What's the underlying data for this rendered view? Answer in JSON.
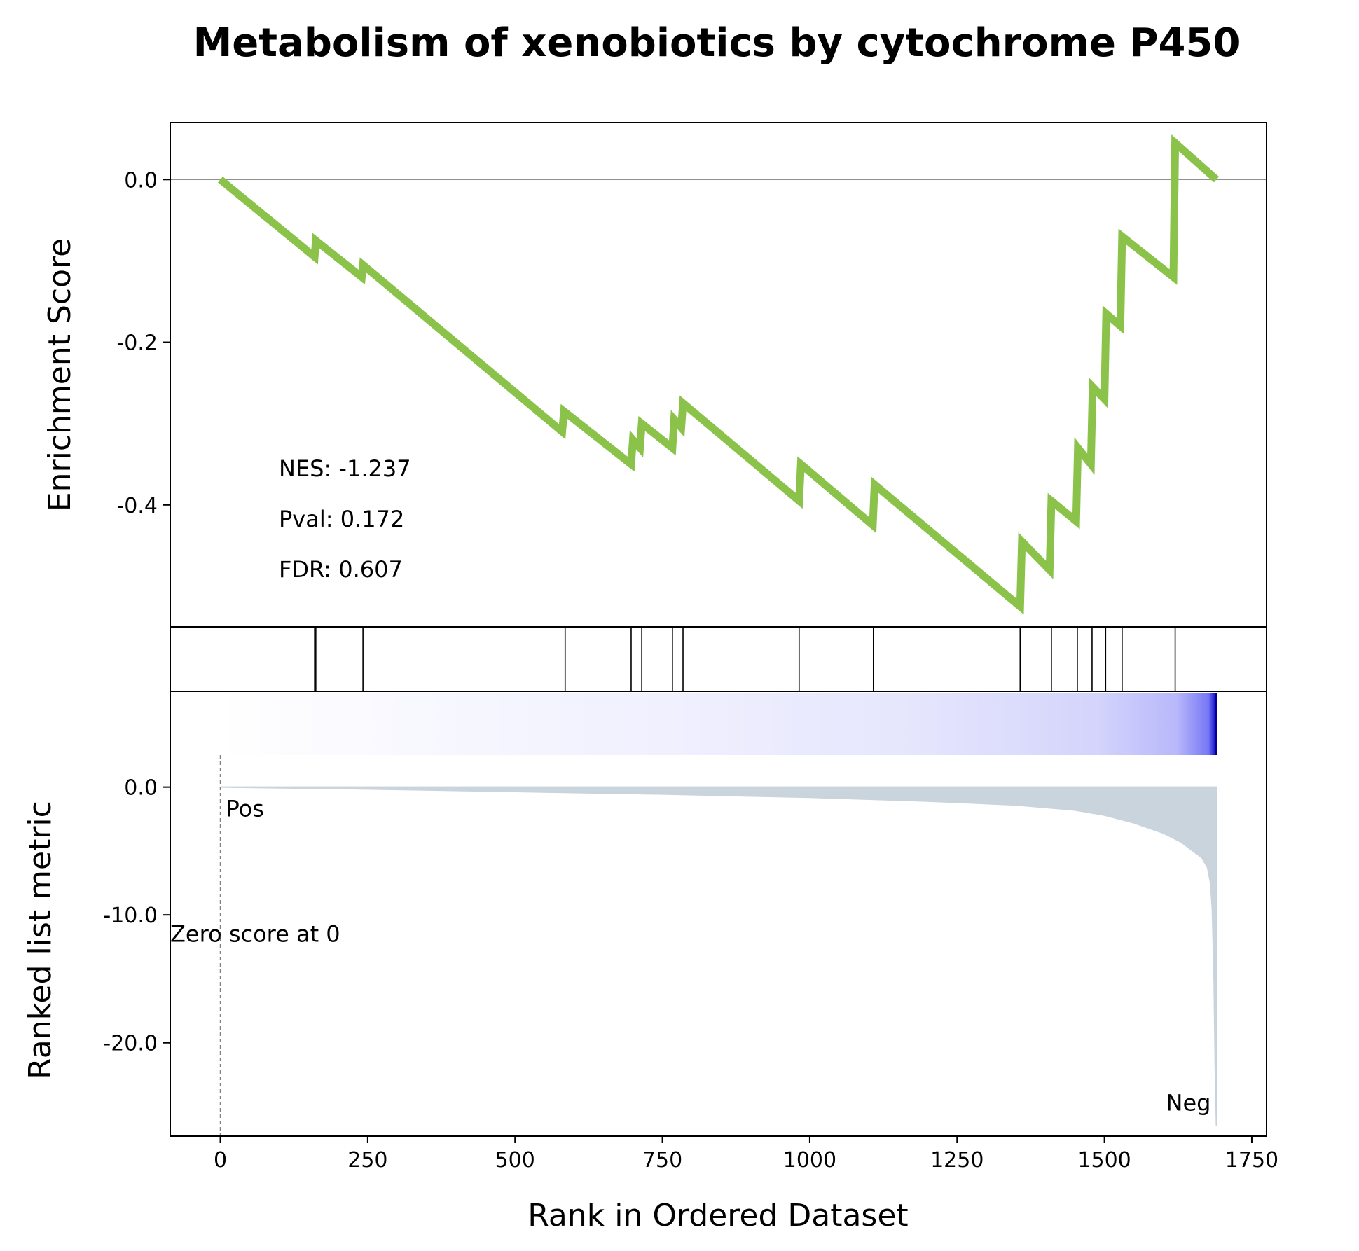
{
  "chart_data": {
    "type": "line",
    "title": "Metabolism of xenobiotics by cytochrome P450",
    "xlabel": "Rank in Ordered Dataset",
    "xlim": [
      -85,
      1775
    ],
    "x_ticks": [
      0,
      250,
      500,
      750,
      1000,
      1250,
      1500,
      1750
    ],
    "x_tick_labels": [
      "0",
      "250",
      "500",
      "750",
      "1000",
      "1250",
      "1500",
      "1750"
    ],
    "enrichment": {
      "ylabel": "Enrichment Score",
      "ylim": [
        -0.55,
        0.07
      ],
      "y_ticks": [
        0.0,
        -0.2,
        -0.4
      ],
      "y_tick_labels": [
        "0.0",
        "-0.2",
        "-0.4"
      ],
      "color": "#8bc34a",
      "x": [
        0,
        160,
        162,
        240,
        242,
        580,
        583,
        697,
        700,
        712,
        715,
        767,
        770,
        782,
        785,
        982,
        985,
        1107,
        1110,
        1357,
        1360,
        1407,
        1410,
        1452,
        1455,
        1477,
        1480,
        1500,
        1503,
        1527,
        1530,
        1617,
        1620,
        1690
      ],
      "y": [
        0.0,
        -0.095,
        -0.075,
        -0.12,
        -0.105,
        -0.31,
        -0.285,
        -0.35,
        -0.32,
        -0.33,
        -0.3,
        -0.33,
        -0.295,
        -0.305,
        -0.275,
        -0.395,
        -0.35,
        -0.425,
        -0.375,
        -0.525,
        -0.445,
        -0.48,
        -0.395,
        -0.42,
        -0.33,
        -0.35,
        -0.255,
        -0.27,
        -0.165,
        -0.18,
        -0.07,
        -0.12,
        0.045,
        0.0
      ],
      "zero_line": 0.0,
      "annotations": [
        "NES: -1.237",
        "Pval: 0.172",
        "FDR: 0.607"
      ]
    },
    "hits": {
      "x": [
        160,
        162,
        242,
        585,
        697,
        715,
        767,
        785,
        982,
        1108,
        1357,
        1410,
        1454,
        1479,
        1502,
        1530,
        1620
      ]
    },
    "ranked_metric": {
      "ylabel": "Ranked list metric",
      "ylim": [
        -27.3,
        2.5
      ],
      "y_ticks": [
        0.0,
        -10.0,
        -20.0
      ],
      "y_tick_labels": [
        "0.0",
        "-10.0",
        "-20.0"
      ],
      "fill_color": "#c9d4dc",
      "x": [
        0,
        250,
        500,
        750,
        1000,
        1200,
        1350,
        1450,
        1500,
        1550,
        1600,
        1630,
        1650,
        1665,
        1675,
        1680,
        1683,
        1686,
        1688,
        1690
      ],
      "y": [
        0.0,
        -0.15,
        -0.35,
        -0.55,
        -0.8,
        -1.1,
        -1.4,
        -1.8,
        -2.2,
        -2.8,
        -3.6,
        -4.3,
        -5.0,
        -5.5,
        -6.3,
        -7.5,
        -9.5,
        -15.0,
        -22.0,
        -26.5
      ],
      "zero_score_label": "Zero score at 0",
      "zero_score_at": 0,
      "pos_label": "Pos",
      "neg_label": "Neg",
      "pos_color": "#ff0000",
      "neg_color": "#0000ff"
    }
  }
}
